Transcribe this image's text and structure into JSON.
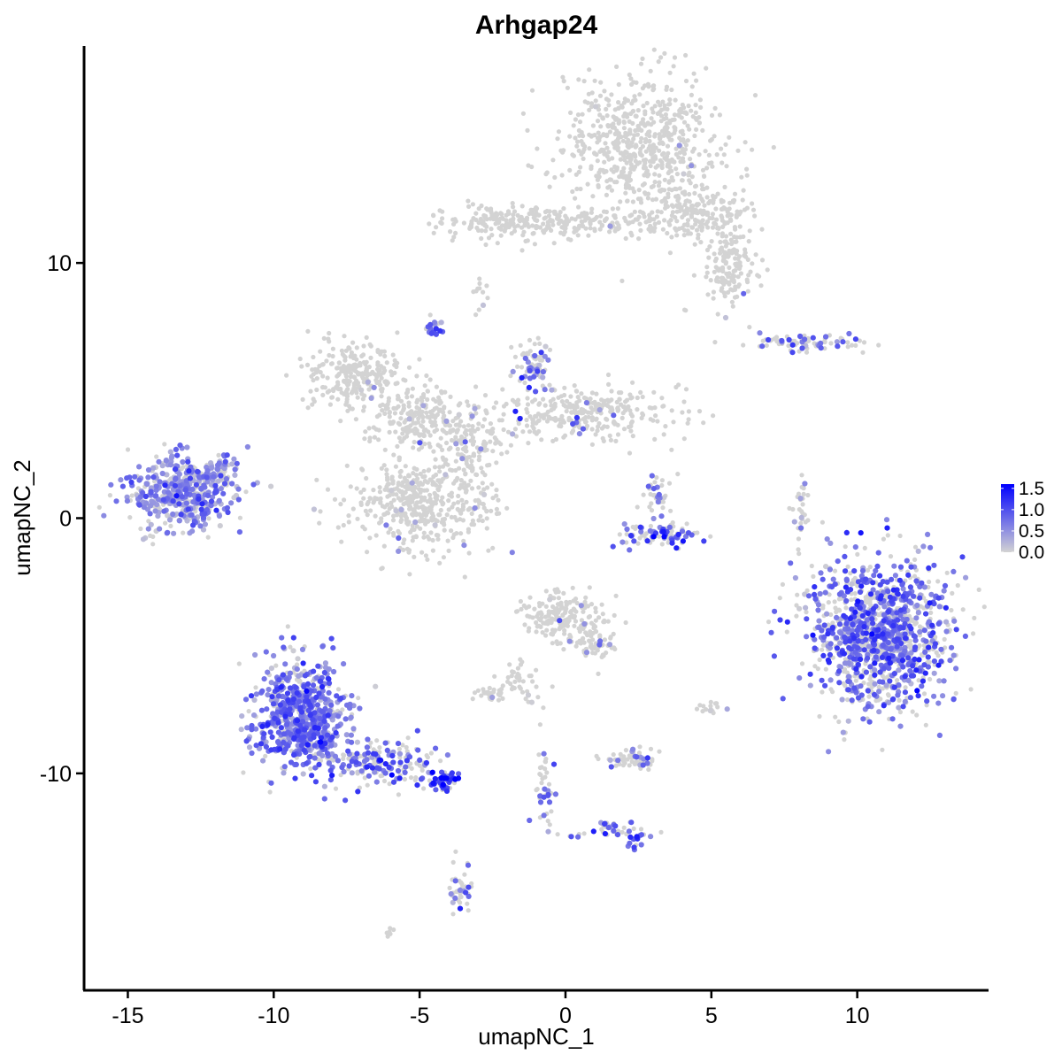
{
  "chart_data": {
    "type": "scatter",
    "title": "Arhgap24",
    "xlabel": "umapNC_1",
    "ylabel": "umapNC_2",
    "xlim": [
      -16.5,
      14.5
    ],
    "ylim": [
      -18.5,
      18.5
    ],
    "x_ticks": [
      -15,
      -10,
      -5,
      0,
      5,
      10
    ],
    "x_tick_labels": [
      "-15",
      "-10",
      "-5",
      "0",
      "5",
      "10"
    ],
    "y_ticks": [
      -10,
      0,
      10
    ],
    "y_tick_labels": [
      "-10",
      "0",
      "10"
    ],
    "grid": false,
    "colors": {
      "low": "#d3d3d3",
      "high": "#0000ff"
    },
    "legend": {
      "position": "right",
      "min": 0,
      "max": 1.6,
      "ticks": [
        0.0,
        0.5,
        1.0,
        1.5
      ],
      "tick_labels": [
        "0.0",
        "0.5",
        "1.0",
        "1.5"
      ]
    },
    "clusters": [
      {
        "cx": 2.6,
        "cy": 14.7,
        "sx": 1.3,
        "sy": 1.4,
        "n": 650,
        "expr": 0.05,
        "pexpr": 0.01
      },
      {
        "cx": -1.8,
        "cy": 11.6,
        "sx": 1.3,
        "sy": 0.4,
        "n": 170,
        "expr": 0.1,
        "pexpr": 0.01
      },
      {
        "cx": 0.8,
        "cy": 11.6,
        "sx": 1.6,
        "sy": 0.25,
        "n": 120,
        "expr": 0.1,
        "pexpr": 0.0
      },
      {
        "cx": 4.6,
        "cy": 12.0,
        "sx": 0.9,
        "sy": 0.6,
        "n": 180,
        "expr": 0.1,
        "pexpr": 0.02
      },
      {
        "cx": 5.6,
        "cy": 9.8,
        "sx": 0.5,
        "sy": 0.9,
        "n": 150,
        "expr": 0.3,
        "pexpr": 0.02
      },
      {
        "cx": -2.9,
        "cy": 8.9,
        "sx": 0.15,
        "sy": 0.35,
        "n": 12,
        "expr": 0.4,
        "pexpr": 0.1
      },
      {
        "cx": -4.5,
        "cy": 7.4,
        "sx": 0.15,
        "sy": 0.15,
        "n": 20,
        "expr": 0.8,
        "pexpr": 0.8
      },
      {
        "cx": -7.2,
        "cy": 5.6,
        "sx": 0.8,
        "sy": 0.6,
        "n": 260,
        "expr": 0.1,
        "pexpr": 0.01
      },
      {
        "cx": -5.2,
        "cy": 4.0,
        "sx": 0.8,
        "sy": 0.6,
        "n": 160,
        "expr": 0.3,
        "pexpr": 0.03
      },
      {
        "cx": -3.6,
        "cy": 3.2,
        "sx": 0.9,
        "sy": 0.6,
        "n": 160,
        "expr": 0.4,
        "pexpr": 0.04
      },
      {
        "cx": -1.1,
        "cy": 5.9,
        "sx": 0.35,
        "sy": 0.5,
        "n": 70,
        "expr": 0.6,
        "pexpr": 0.35
      },
      {
        "cx": 0.8,
        "cy": 4.1,
        "sx": 1.6,
        "sy": 0.5,
        "n": 300,
        "expr": 0.7,
        "pexpr": 0.05
      },
      {
        "cx": -5.1,
        "cy": 0.6,
        "sx": 1.0,
        "sy": 0.85,
        "n": 420,
        "expr": 0.4,
        "pexpr": 0.02
      },
      {
        "cx": -3.0,
        "cy": 0.8,
        "sx": 0.6,
        "sy": 0.9,
        "n": 60,
        "expr": 0.4,
        "pexpr": 0.05
      },
      {
        "cx": -13.2,
        "cy": 1.0,
        "sx": 0.95,
        "sy": 0.7,
        "n": 460,
        "expr": 0.55,
        "pexpr": 0.75
      },
      {
        "cx": -11.8,
        "cy": 1.8,
        "sx": 0.3,
        "sy": 0.35,
        "n": 40,
        "expr": 0.5,
        "pexpr": 0.7
      },
      {
        "cx": 3.3,
        "cy": -0.6,
        "sx": 0.6,
        "sy": 0.25,
        "n": 90,
        "expr": 1.0,
        "pexpr": 0.45
      },
      {
        "cx": 3.2,
        "cy": 0.8,
        "sx": 0.25,
        "sy": 0.5,
        "n": 35,
        "expr": 0.6,
        "pexpr": 0.3
      },
      {
        "cx": 8.2,
        "cy": 6.9,
        "sx": 1.0,
        "sy": 0.15,
        "n": 80,
        "expr": 0.7,
        "pexpr": 0.3
      },
      {
        "cx": 8.1,
        "cy": 0.2,
        "sx": 0.15,
        "sy": 0.8,
        "n": 30,
        "expr": 0.4,
        "pexpr": 0.15
      },
      {
        "cx": 10.8,
        "cy": -4.5,
        "sx": 1.2,
        "sy": 1.4,
        "n": 1200,
        "expr": 0.8,
        "pexpr": 0.55
      },
      {
        "cx": -9.0,
        "cy": -7.8,
        "sx": 0.8,
        "sy": 1.1,
        "n": 700,
        "expr": 0.7,
        "pexpr": 0.8
      },
      {
        "cx": -6.3,
        "cy": -9.6,
        "sx": 0.9,
        "sy": 0.45,
        "n": 160,
        "expr": 0.8,
        "pexpr": 0.5
      },
      {
        "cx": -4.2,
        "cy": -10.3,
        "sx": 0.3,
        "sy": 0.2,
        "n": 50,
        "expr": 1.2,
        "pexpr": 0.8
      },
      {
        "cx": -3.6,
        "cy": -14.6,
        "sx": 0.2,
        "sy": 0.6,
        "n": 40,
        "expr": 0.7,
        "pexpr": 0.2
      },
      {
        "cx": -0.2,
        "cy": -3.9,
        "sx": 0.6,
        "sy": 0.5,
        "n": 170,
        "expr": 0.3,
        "pexpr": 0.03
      },
      {
        "cx": 1.0,
        "cy": -4.8,
        "sx": 0.4,
        "sy": 0.5,
        "n": 70,
        "expr": 0.4,
        "pexpr": 0.05
      },
      {
        "cx": -1.5,
        "cy": -6.4,
        "sx": 0.45,
        "sy": 0.4,
        "n": 40,
        "expr": 0.3,
        "pexpr": 0.02
      },
      {
        "cx": -2.6,
        "cy": -6.9,
        "sx": 0.35,
        "sy": 0.12,
        "n": 30,
        "expr": 0.6,
        "pexpr": 0.1
      },
      {
        "cx": 2.4,
        "cy": -9.4,
        "sx": 0.45,
        "sy": 0.2,
        "n": 60,
        "expr": 0.7,
        "pexpr": 0.2
      },
      {
        "cx": -0.8,
        "cy": -10.3,
        "sx": 0.15,
        "sy": 0.8,
        "n": 40,
        "expr": 0.8,
        "pexpr": 0.35
      },
      {
        "cx": 1.3,
        "cy": -12.2,
        "sx": 0.8,
        "sy": 0.15,
        "n": 40,
        "expr": 0.8,
        "pexpr": 0.3
      },
      {
        "cx": 2.4,
        "cy": -12.7,
        "sx": 0.15,
        "sy": 0.15,
        "n": 12,
        "expr": 1.1,
        "pexpr": 0.7
      },
      {
        "cx": 5.0,
        "cy": -7.4,
        "sx": 0.2,
        "sy": 0.15,
        "n": 15,
        "expr": 0.3,
        "pexpr": 0.1
      },
      {
        "cx": -6.0,
        "cy": -16.2,
        "sx": 0.1,
        "sy": 0.1,
        "n": 6,
        "expr": 0.1,
        "pexpr": 0.0
      }
    ]
  }
}
